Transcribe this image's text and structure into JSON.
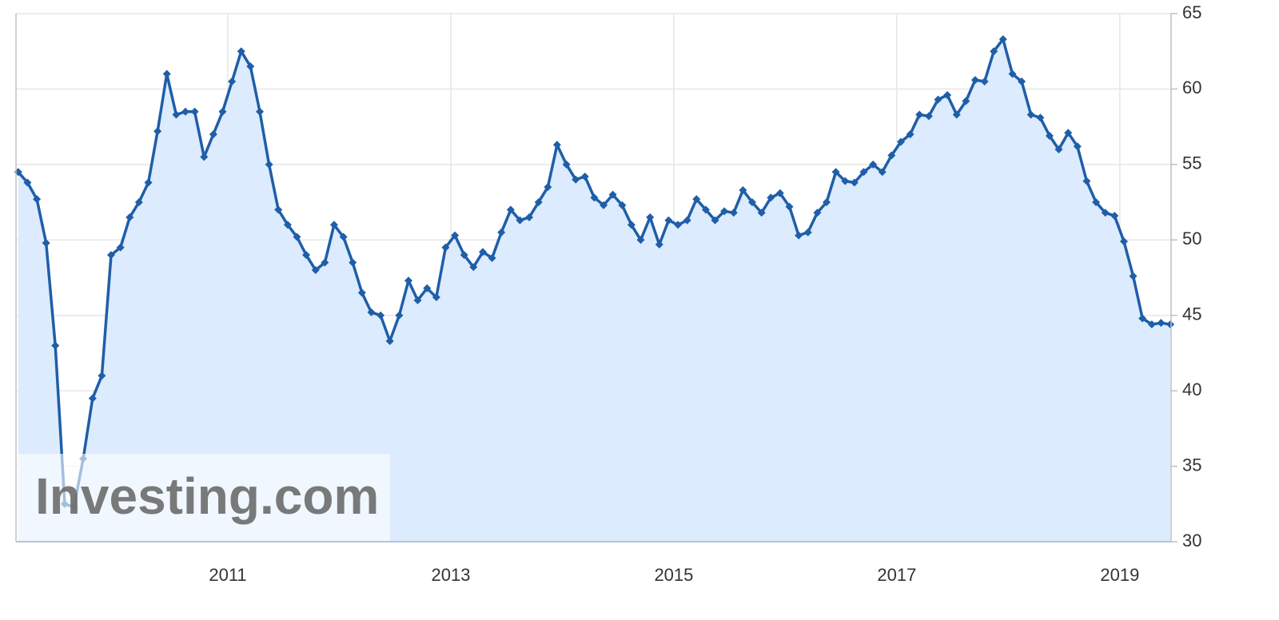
{
  "chart_data": {
    "type": "area",
    "watermark": "Investing.com",
    "color": "#1f5ea8",
    "fill": "#dcebfd",
    "grid": true,
    "y_axis_side": "right",
    "xlim": [
      2009.1,
      2019.46
    ],
    "xticks": [
      2011,
      2013,
      2015,
      2017,
      2019
    ],
    "ylim": [
      30,
      65
    ],
    "yticks": [
      30,
      35,
      40,
      45,
      50,
      55,
      60,
      65
    ],
    "x": [
      2009.12,
      2009.203,
      2009.287,
      2009.37,
      2009.453,
      2009.537,
      2009.62,
      2009.703,
      2009.787,
      2009.87,
      2009.953,
      2010.037,
      2010.12,
      2010.203,
      2010.287,
      2010.37,
      2010.453,
      2010.537,
      2010.62,
      2010.703,
      2010.787,
      2010.87,
      2010.953,
      2011.037,
      2011.12,
      2011.203,
      2011.287,
      2011.37,
      2011.453,
      2011.537,
      2011.62,
      2011.703,
      2011.787,
      2011.87,
      2011.953,
      2012.037,
      2012.12,
      2012.203,
      2012.287,
      2012.37,
      2012.453,
      2012.537,
      2012.62,
      2012.703,
      2012.787,
      2012.87,
      2012.953,
      2013.037,
      2013.12,
      2013.203,
      2013.287,
      2013.37,
      2013.453,
      2013.537,
      2013.62,
      2013.703,
      2013.787,
      2013.87,
      2013.953,
      2014.037,
      2014.12,
      2014.203,
      2014.287,
      2014.37,
      2014.453,
      2014.537,
      2014.62,
      2014.703,
      2014.787,
      2014.87,
      2014.953,
      2015.037,
      2015.12,
      2015.203,
      2015.287,
      2015.37,
      2015.453,
      2015.537,
      2015.62,
      2015.703,
      2015.787,
      2015.87,
      2015.953,
      2016.037,
      2016.12,
      2016.203,
      2016.287,
      2016.37,
      2016.453,
      2016.537,
      2016.62,
      2016.703,
      2016.787,
      2016.87,
      2016.953,
      2017.037,
      2017.12,
      2017.203,
      2017.287,
      2017.37,
      2017.453,
      2017.537,
      2017.62,
      2017.703,
      2017.787,
      2017.87,
      2017.953,
      2018.037,
      2018.12,
      2018.203,
      2018.287,
      2018.37,
      2018.453,
      2018.537,
      2018.62,
      2018.703,
      2018.787,
      2018.87,
      2018.953,
      2019.037,
      2019.12,
      2019.203,
      2019.287,
      2019.37,
      2019.453
    ],
    "values": [
      54.5,
      53.8,
      52.7,
      49.8,
      43,
      32.5,
      32.3,
      35.5,
      39.5,
      41,
      49,
      49.5,
      51.5,
      52.5,
      53.8,
      57.2,
      61,
      58.3,
      58.5,
      58.5,
      55.5,
      57,
      58.5,
      60.5,
      62.5,
      61.5,
      58.5,
      55,
      52,
      51,
      50.2,
      49,
      48,
      48.5,
      51,
      50.2,
      48.5,
      46.5,
      45.2,
      45,
      43.3,
      45,
      47.3,
      46,
      46.8,
      46.2,
      49.5,
      50.3,
      49,
      48.2,
      49.2,
      48.8,
      50.5,
      52,
      51.3,
      51.5,
      52.5,
      53.5,
      56.3,
      55,
      54,
      54.2,
      52.8,
      52.3,
      53,
      52.3,
      51,
      50,
      51.5,
      49.7,
      51.3,
      51,
      51.3,
      52.7,
      52,
      51.3,
      51.9,
      51.8,
      53.3,
      52.5,
      51.8,
      52.8,
      53.1,
      52.2,
      50.3,
      50.5,
      51.8,
      52.5,
      54.5,
      53.9,
      53.8,
      54.5,
      55,
      54.5,
      55.6,
      56.5,
      57,
      58.3,
      58.2,
      59.3,
      59.6,
      58.3,
      59.2,
      60.6,
      60.5,
      62.5,
      63.3,
      61,
      60.5,
      58.3,
      58.1,
      56.9,
      56,
      57.1,
      56.2,
      53.9,
      52.5,
      51.8,
      51.6,
      49.9,
      47.6,
      44.8,
      44.4,
      44.5,
      44.4
    ]
  }
}
